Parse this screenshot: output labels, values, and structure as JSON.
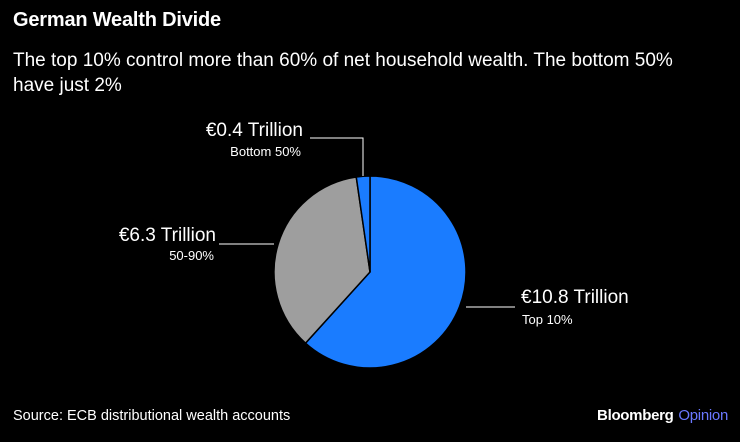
{
  "title": "German Wealth Divide",
  "subtitle": "The top 10% control more than 60% of net household wealth. The bottom 50% have just 2%",
  "source": "Source: ECB distributional wealth accounts",
  "brand": {
    "name": "Bloomberg",
    "suffix": "Opinion"
  },
  "colors": {
    "top10": "#1a7cff",
    "mid": "#9e9e9e",
    "bottom": "#1a7cff",
    "brand_accent": "#6a78ff"
  },
  "chart_data": {
    "type": "pie",
    "title": "German Wealth Divide",
    "unit": "€ Trillion",
    "slices": [
      {
        "name": "Top 10%",
        "value": 10.8,
        "value_label": "€10.8 Trillion",
        "color": "#1a7cff"
      },
      {
        "name": "50-90%",
        "value": 6.3,
        "value_label": "€6.3 Trillion",
        "color": "#9e9e9e"
      },
      {
        "name": "Bottom 50%",
        "value": 0.4,
        "value_label": "€0.4 Trillion",
        "color": "#1a7cff"
      }
    ]
  }
}
